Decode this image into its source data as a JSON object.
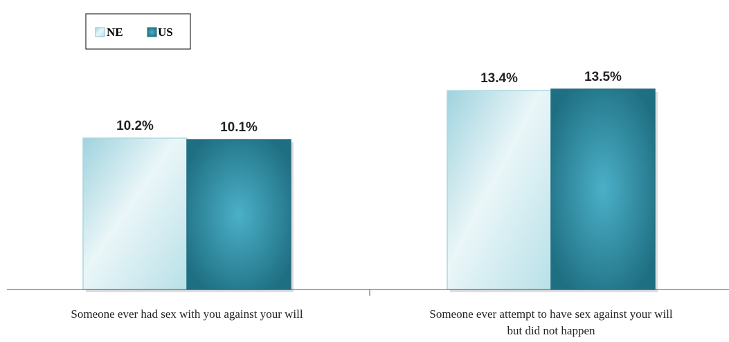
{
  "chart_data": {
    "type": "bar",
    "categories": [
      [
        "Someone ever had sex with you against your will"
      ],
      [
        "Someone ever attempt to have sex against your will",
        "but did not happen"
      ]
    ],
    "series": [
      {
        "name": "NE",
        "values": [
          10.2,
          13.4
        ],
        "labels": [
          "10.2%",
          "13.4%"
        ],
        "color": "#d4edf2"
      },
      {
        "name": "US",
        "values": [
          10.1,
          13.5
        ],
        "labels": [
          "10.1%",
          "13.5%"
        ],
        "color": "#2e8196"
      }
    ],
    "ylim": [
      0,
      18
    ],
    "grid": false,
    "legend": "top-left"
  }
}
